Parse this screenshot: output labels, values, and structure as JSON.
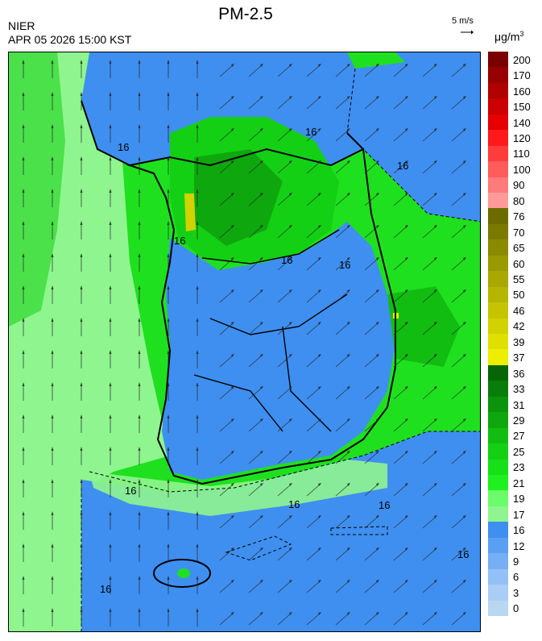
{
  "header": {
    "title": "PM-2.5",
    "agency": "NIER",
    "datetime": "APR 05 2026 15:00 KST",
    "vector_scale_label": "5 m/s",
    "unit_base": "μg/m",
    "unit_exp": "3"
  },
  "map": {
    "contour_labels": [
      "16",
      "16",
      "16",
      "16",
      "16",
      "16",
      "16",
      "16",
      "16",
      "16",
      "16"
    ]
  },
  "legend": {
    "labels": [
      "200",
      "170",
      "160",
      "150",
      "140",
      "120",
      "110",
      "100",
      "90",
      "80",
      "76",
      "70",
      "65",
      "60",
      "55",
      "50",
      "46",
      "42",
      "39",
      "37",
      "36",
      "33",
      "31",
      "29",
      "27",
      "25",
      "23",
      "21",
      "19",
      "17",
      "16",
      "12",
      "9",
      "6",
      "3",
      "0"
    ],
    "colors": [
      "#7a0000",
      "#960000",
      "#b00000",
      "#cc0000",
      "#e60000",
      "#ff1a1a",
      "#ff3c3c",
      "#ff5c5c",
      "#ff7a7a",
      "#ff9a9a",
      "#6b6b00",
      "#7a7a00",
      "#8a8a00",
      "#999900",
      "#a8a800",
      "#b6b600",
      "#c4c400",
      "#d2d200",
      "#e0e000",
      "#eeee00",
      "#066606",
      "#097d09",
      "#0b940b",
      "#0ea80e",
      "#11bd11",
      "#14d014",
      "#18e018",
      "#1ff01f",
      "#6afc6a",
      "#8ff58f",
      "#3f8ff0",
      "#5a9ff2",
      "#76aff4",
      "#93c0f6",
      "#a9cdf4",
      "#b9d7f0"
    ]
  }
}
